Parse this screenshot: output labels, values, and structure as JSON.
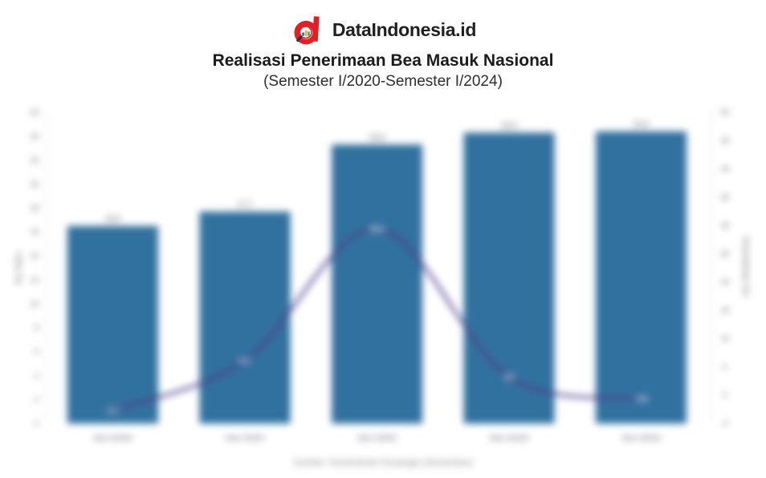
{
  "header": {
    "brand": "DataIndonesia.id",
    "title": "Realisasi Penerimaan Bea Masuk Nasional",
    "subtitle": "(Semester I/2020-Semester I/2024)",
    "logo_icon": "dataindonesia-magnifier-d-logo",
    "brand_red": "#e31e24"
  },
  "chart_data": {
    "type": "bar",
    "subtype": "bar-line-combo",
    "title": "Realisasi Penerimaan Bea Masuk Nasional",
    "subtitle": "(Semester I/2020-Semester I/2024)",
    "categories": [
      "Sem I/2020",
      "Sem I/2021",
      "Sem I/2022",
      "Sem I/2023",
      "Sem I/2024"
    ],
    "series": [
      {
        "name": "Penerimaan Bea Masuk",
        "kind": "bar",
        "axis": "left",
        "color": "#31719f",
        "values": [
          16.5,
          17.7,
          23.3,
          24.3,
          24.4
        ],
        "labels": [
          "16,5",
          "17,7",
          "23,3",
          "24,3",
          "24,4"
        ],
        "label_color": "#454545"
      },
      {
        "name": "Pertumbuhan",
        "kind": "line",
        "axis": "right",
        "color": "#4f3f8c",
        "values": [
          -2.7,
          6.1,
          29.4,
          3.2,
          -0.6
        ],
        "labels": [
          "-2,7",
          "6,1",
          "29,4",
          "3,2",
          "-0,6"
        ],
        "point_label_color": "#ffffff"
      }
    ],
    "left_axis": {
      "title": "Rp Triliun",
      "min": 0,
      "max": 26,
      "step": 2
    },
    "right_axis": {
      "title": "Pertumbuhan (%)",
      "min": -5,
      "max": 50,
      "step": 5
    },
    "legend": false,
    "grid": false,
    "source": "Sumber: Kementerian Keuangan (Kemenkeu)"
  }
}
